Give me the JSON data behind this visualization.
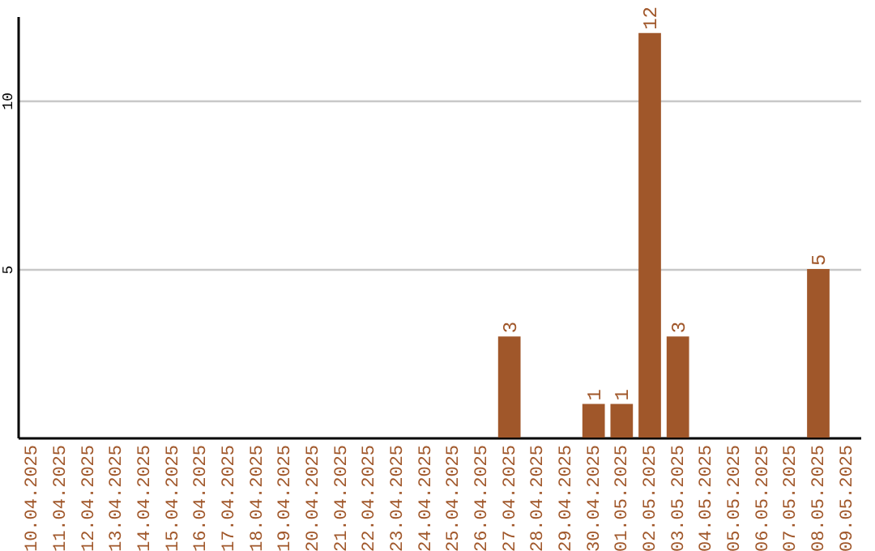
{
  "chart_data": {
    "type": "bar",
    "categories": [
      "10.04.2025",
      "11.04.2025",
      "12.04.2025",
      "13.04.2025",
      "14.04.2025",
      "15.04.2025",
      "16.04.2025",
      "17.04.2025",
      "18.04.2025",
      "19.04.2025",
      "20.04.2025",
      "21.04.2025",
      "22.04.2025",
      "23.04.2025",
      "24.04.2025",
      "25.04.2025",
      "26.04.2025",
      "27.04.2025",
      "28.04.2025",
      "29.04.2025",
      "30.04.2025",
      "01.05.2025",
      "02.05.2025",
      "03.05.2025",
      "04.05.2025",
      "05.05.2025",
      "06.05.2025",
      "07.05.2025",
      "08.05.2025",
      "09.05.2025"
    ],
    "values": [
      0,
      0,
      0,
      0,
      0,
      0,
      0,
      0,
      0,
      0,
      0,
      0,
      0,
      0,
      0,
      0,
      0,
      3,
      0,
      0,
      1,
      1,
      12,
      3,
      0,
      0,
      0,
      0,
      5,
      0
    ],
    "value_labels": [
      null,
      null,
      null,
      null,
      null,
      null,
      null,
      null,
      null,
      null,
      null,
      null,
      null,
      null,
      null,
      null,
      null,
      "3",
      null,
      null,
      "1",
      "1",
      "12",
      "3",
      null,
      null,
      null,
      null,
      "5",
      null
    ],
    "color": "#a0572a",
    "ylim": [
      0,
      12.5
    ],
    "yticks": [
      5,
      10
    ],
    "grid": "y"
  }
}
